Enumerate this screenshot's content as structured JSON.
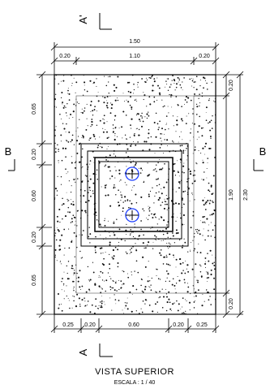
{
  "drawing": {
    "title": "VISTA SUPERIOR",
    "scale": "ESCALA : 1 / 40"
  },
  "section_marks": {
    "a_top": "A'",
    "a_bottom": "A",
    "b_left": "B",
    "b_right": "B"
  },
  "dimensions": {
    "top_total": "1.50",
    "top_parts": [
      "0.20",
      "1.10",
      "0.20"
    ],
    "left_parts": [
      "0.65",
      "0.20",
      "0.60",
      "0.20",
      "0.65"
    ],
    "right_outer": "2.30",
    "right_inner": "1.90",
    "right_top": "0.20",
    "right_bottom": "0.20",
    "bottom_parts": [
      "0.25",
      "0.20",
      "0.60",
      "0.20",
      "0.25"
    ]
  },
  "colors": {
    "line": "#000000",
    "marker": "#1a3cff",
    "speckle": "#111111"
  }
}
